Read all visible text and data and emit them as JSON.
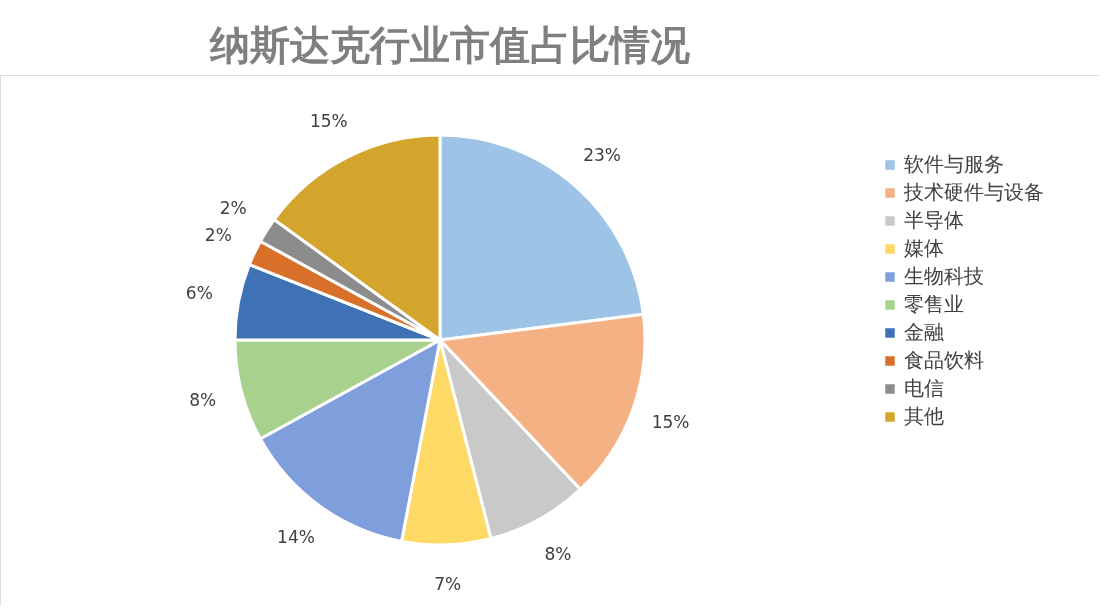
{
  "chart_data": {
    "type": "pie",
    "title": "纳斯达克行业市值占比情况",
    "categories": [
      "软件与服务",
      "技术硬件与设备",
      "半导体",
      "媒体",
      "生物科技",
      "零售业",
      "金融",
      "食品饮料",
      "电信",
      "其他"
    ],
    "values": [
      23,
      15,
      8,
      7,
      14,
      8,
      6,
      2,
      2,
      15
    ],
    "value_labels": [
      "23%",
      "15%",
      "8%",
      "7%",
      "14%",
      "8%",
      "6%",
      "2%",
      "2%",
      "15%"
    ],
    "colors": [
      "#9dc3e6",
      "#f4b183",
      "#c9c9c9",
      "#ffd966",
      "#7f9fdc",
      "#a9d18e",
      "#3f72b5",
      "#d9702a",
      "#8c8c8c",
      "#d4a52c"
    ],
    "legend": "right"
  }
}
